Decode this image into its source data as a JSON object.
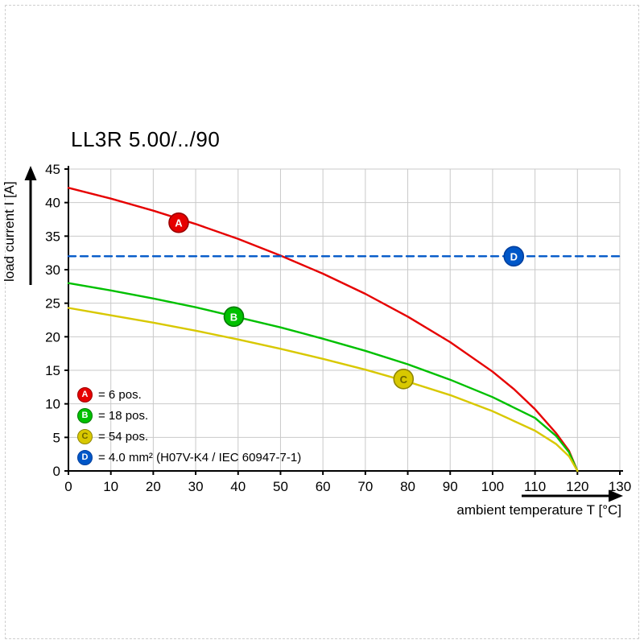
{
  "title": "LL3R 5.00/../90",
  "chart_data": {
    "type": "line",
    "title": "LL3R 5.00/../90",
    "xlabel": "ambient temperature T [°C]",
    "ylabel": "load current I [A]",
    "xlim": [
      0,
      130
    ],
    "ylim": [
      0,
      45
    ],
    "xticks": [
      0,
      10,
      20,
      30,
      40,
      50,
      60,
      70,
      80,
      90,
      100,
      110,
      120,
      130
    ],
    "yticks": [
      0,
      5,
      10,
      15,
      20,
      25,
      30,
      35,
      40,
      45
    ],
    "grid": true,
    "legend_position": "lower-left-inside",
    "series": [
      {
        "name": "A",
        "label": "= 6 pos.",
        "color": "#e60000",
        "edge": "#9b0000",
        "letter_color": "#ffffff",
        "style": "solid",
        "marker_at": [
          26,
          37
        ],
        "points": [
          [
            0,
            42.2
          ],
          [
            10,
            40.6
          ],
          [
            20,
            38.8
          ],
          [
            30,
            36.8
          ],
          [
            40,
            34.6
          ],
          [
            50,
            32.1
          ],
          [
            60,
            29.4
          ],
          [
            70,
            26.4
          ],
          [
            80,
            23.0
          ],
          [
            90,
            19.2
          ],
          [
            100,
            14.8
          ],
          [
            105,
            12.2
          ],
          [
            110,
            9.2
          ],
          [
            115,
            5.6
          ],
          [
            118,
            3.0
          ],
          [
            120,
            0
          ]
        ]
      },
      {
        "name": "B",
        "label": "= 18 pos.",
        "color": "#00c000",
        "edge": "#007a00",
        "letter_color": "#ffffff",
        "style": "solid",
        "marker_at": [
          39,
          23
        ],
        "points": [
          [
            0,
            28.0
          ],
          [
            10,
            26.9
          ],
          [
            20,
            25.7
          ],
          [
            30,
            24.4
          ],
          [
            40,
            22.9
          ],
          [
            50,
            21.4
          ],
          [
            60,
            19.7
          ],
          [
            70,
            17.9
          ],
          [
            80,
            15.9
          ],
          [
            90,
            13.6
          ],
          [
            100,
            11.0
          ],
          [
            110,
            7.9
          ],
          [
            115,
            5.2
          ],
          [
            118,
            2.8
          ],
          [
            120,
            0
          ]
        ]
      },
      {
        "name": "C",
        "label": "= 54 pos.",
        "color": "#d8c800",
        "edge": "#8f8600",
        "letter_color": "#6e6600",
        "style": "solid",
        "marker_at": [
          79,
          13.7
        ],
        "points": [
          [
            0,
            24.3
          ],
          [
            10,
            23.2
          ],
          [
            20,
            22.1
          ],
          [
            30,
            20.9
          ],
          [
            40,
            19.6
          ],
          [
            50,
            18.2
          ],
          [
            60,
            16.7
          ],
          [
            70,
            15.1
          ],
          [
            80,
            13.3
          ],
          [
            90,
            11.3
          ],
          [
            100,
            8.9
          ],
          [
            110,
            6.0
          ],
          [
            115,
            4.0
          ],
          [
            118,
            2.2
          ],
          [
            120,
            0
          ]
        ]
      },
      {
        "name": "D",
        "label": "= 4.0 mm² (H07V-K4 / IEC 60947-7-1)",
        "color": "#0057c8",
        "edge": "#003f9e",
        "letter_color": "#ffffff",
        "style": "dashed",
        "marker_at": [
          105,
          32
        ],
        "points": [
          [
            0,
            32
          ],
          [
            130,
            32
          ]
        ]
      }
    ]
  }
}
